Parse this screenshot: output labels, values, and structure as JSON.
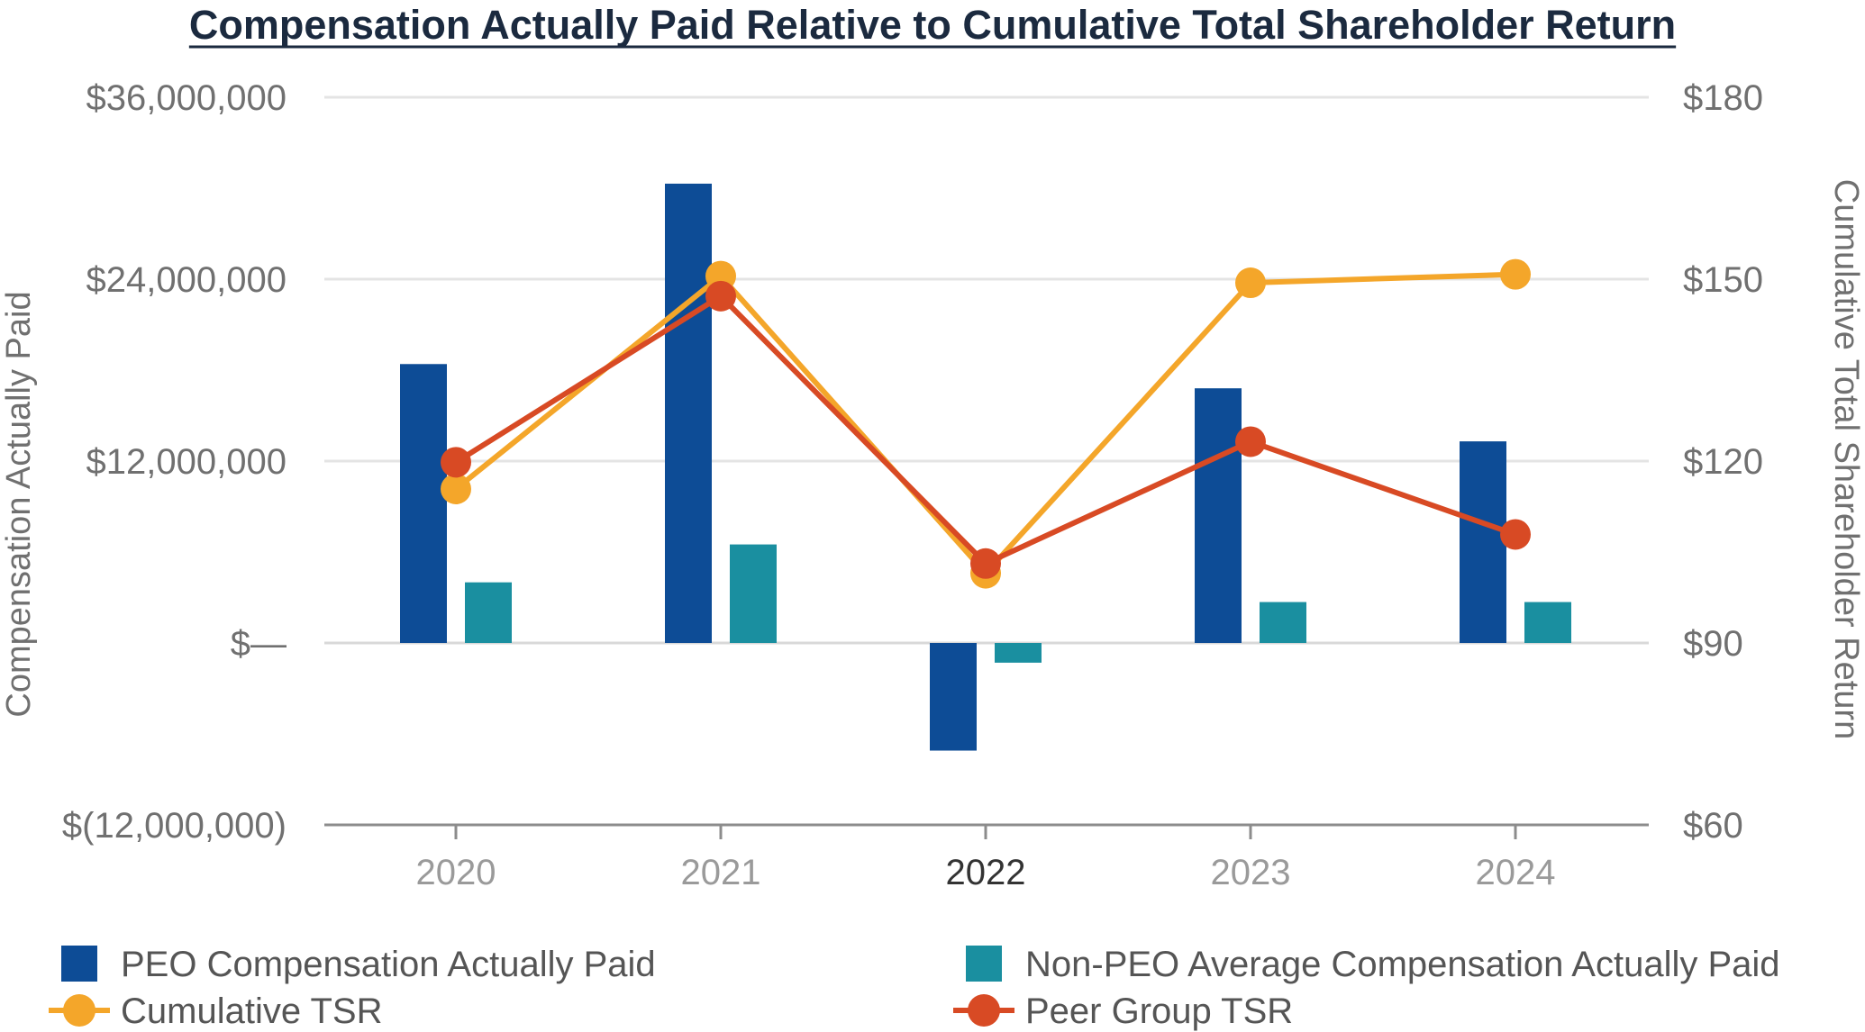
{
  "chart_data": {
    "type": "bar",
    "title": "Compensation Actually Paid Relative to Cumulative Total Shareholder Return",
    "categories": [
      "2020",
      "2021",
      "2022",
      "2023",
      "2024"
    ],
    "y_left": {
      "label": "Compensation Actually Paid",
      "range": [
        -12000000,
        36000000
      ],
      "ticks": [
        -12000000,
        0,
        12000000,
        24000000,
        36000000
      ],
      "tick_labels": [
        "$(12,000,000)",
        "$—",
        "$12,000,000",
        "$24,000,000",
        "$36,000,000"
      ]
    },
    "y_right": {
      "label": "Cumulative Total Shareholder Return",
      "range": [
        60,
        180
      ],
      "ticks": [
        60,
        90,
        120,
        150,
        180
      ],
      "tick_labels": [
        "$60",
        "$90",
        "$120",
        "$150",
        "$180"
      ]
    },
    "series": [
      {
        "name": "PEO Compensation Actually Paid",
        "kind": "bar",
        "axis": "left",
        "color": "#0d4c96",
        "values": [
          18400000,
          30300000,
          -7100000,
          16800000,
          13300000
        ]
      },
      {
        "name": "Non-PEO Average Compensation Actually Paid",
        "kind": "bar",
        "axis": "left",
        "color": "#1a8fa0",
        "values": [
          4000000,
          6500000,
          -1300000,
          2700000,
          2700000
        ]
      },
      {
        "name": "Cumulative TSR",
        "kind": "line",
        "axis": "right",
        "color": "#f4a62a",
        "values": [
          115.4,
          150.5,
          101.5,
          149.4,
          150.8
        ]
      },
      {
        "name": "Peer Group TSR",
        "kind": "line",
        "axis": "right",
        "color": "#d84a24",
        "values": [
          119.8,
          147.2,
          103.1,
          123.2,
          107.9
        ]
      }
    ],
    "grid": true,
    "legend_position": "bottom"
  }
}
